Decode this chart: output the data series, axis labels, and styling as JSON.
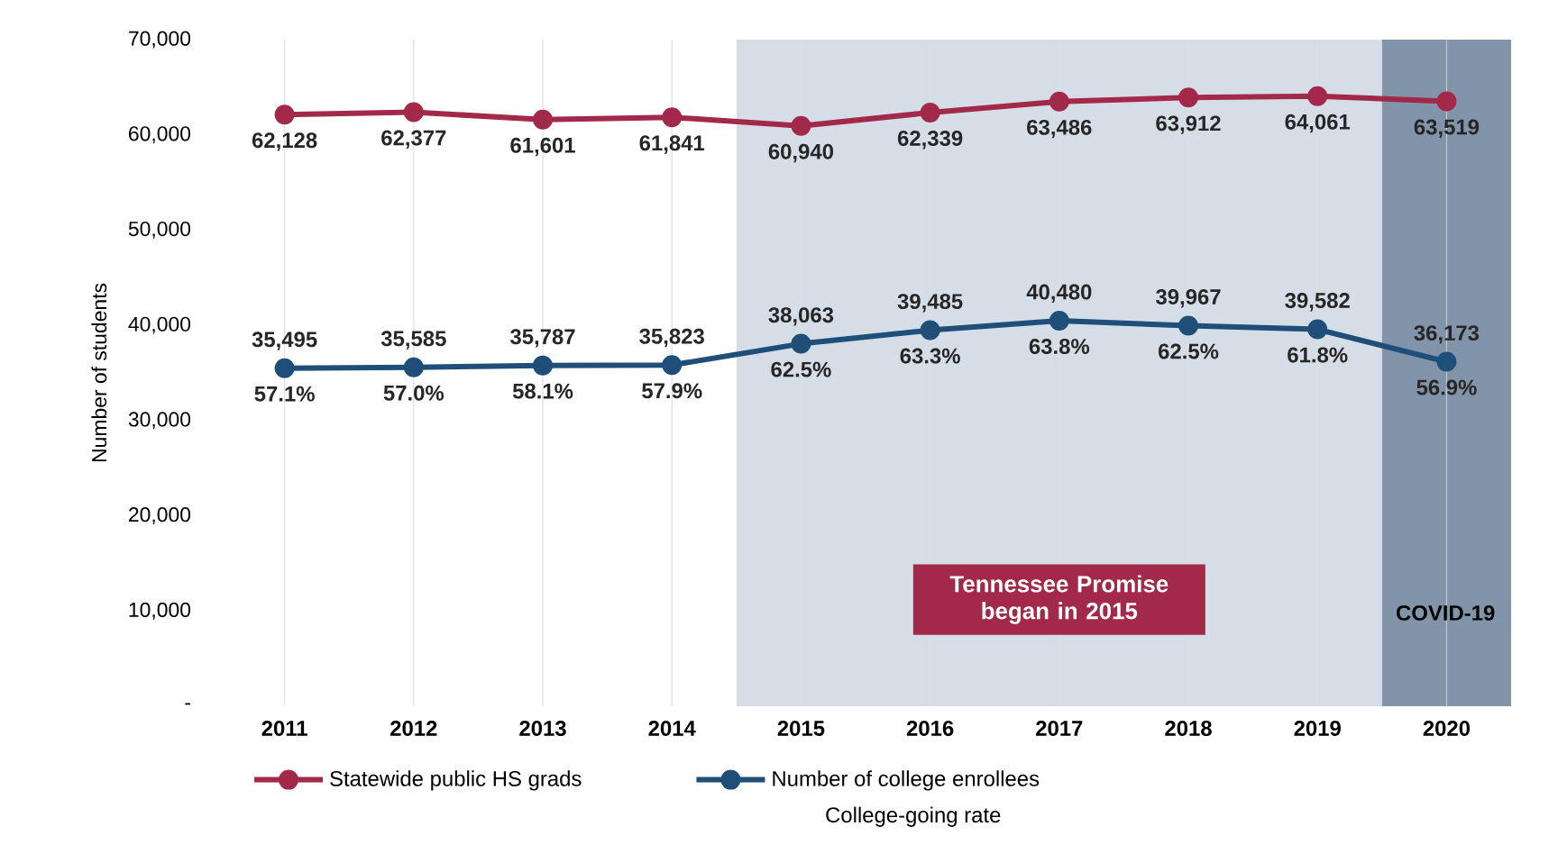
{
  "chart_data": {
    "type": "line",
    "ylabel": "Number of students",
    "categories": [
      "2011",
      "2012",
      "2013",
      "2014",
      "2015",
      "2016",
      "2017",
      "2018",
      "2019",
      "2020"
    ],
    "series": [
      {
        "name": "Statewide public HS grads",
        "color": "#a3294a",
        "values": [
          62128,
          62377,
          61601,
          61841,
          60940,
          62339,
          63486,
          63912,
          64061,
          63519
        ],
        "value_labels": [
          "62,128",
          "62,377",
          "61,601",
          "61,841",
          "60,940",
          "62,339",
          "63,486",
          "63,912",
          "64,061",
          "63,519"
        ]
      },
      {
        "name": "Number of college enrollees",
        "color": "#1f4e79",
        "values": [
          35495,
          35585,
          35787,
          35823,
          38063,
          39485,
          40480,
          39967,
          39582,
          36173
        ],
        "value_labels": [
          "35,495",
          "35,585",
          "35,787",
          "35,823",
          "38,063",
          "39,485",
          "40,480",
          "39,967",
          "39,582",
          "36,173"
        ]
      }
    ],
    "ylim": [
      0,
      70000
    ],
    "yticks": [
      {
        "value": 0,
        "label": "-"
      },
      {
        "value": 10000,
        "label": "10,000"
      },
      {
        "value": 20000,
        "label": "20,000"
      },
      {
        "value": 30000,
        "label": "30,000"
      },
      {
        "value": 40000,
        "label": "40,000"
      },
      {
        "value": 50000,
        "label": "50,000"
      },
      {
        "value": 60000,
        "label": "60,000"
      },
      {
        "value": 70000,
        "label": "70,000"
      }
    ],
    "grid": "x",
    "legend": "bottom",
    "marker": "circle",
    "line_style": "solid",
    "bands": [
      {
        "axis": "x",
        "from": "2015",
        "to": "2019",
        "label": "Tennessee Promise began in 2015",
        "color": "#d5dee7"
      },
      {
        "axis": "x",
        "from": "2020",
        "to": "2020",
        "label": "COVID-19",
        "color": "#8194a9"
      }
    ],
    "annotations": [
      {
        "text": "57.1%",
        "x": "2011",
        "y": 35495
      },
      {
        "text": "57.0%",
        "x": "2012",
        "y": 35585
      },
      {
        "text": "58.1%",
        "x": "2013",
        "y": 35787
      },
      {
        "text": "57.9%",
        "x": "2014",
        "y": 35823
      },
      {
        "text": "62.5%",
        "x": "2015",
        "y": 38063
      },
      {
        "text": "63.3%",
        "x": "2016",
        "y": 39485
      },
      {
        "text": "63.8%",
        "x": "2017",
        "y": 40480
      },
      {
        "text": "62.5%",
        "x": "2018",
        "y": 39967
      },
      {
        "text": "61.8%",
        "x": "2019",
        "y": 39582
      },
      {
        "text": "56.9%",
        "x": "2020",
        "y": 36173
      },
      "College-going rate"
    ]
  }
}
